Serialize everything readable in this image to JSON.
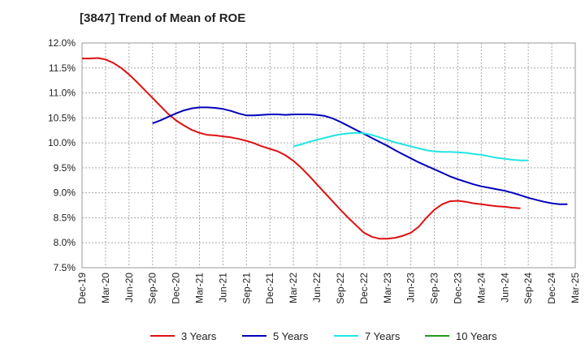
{
  "chart_data": {
    "type": "line",
    "title": "[3847]  Trend of Mean of ROE",
    "xlabel": "",
    "ylabel": "",
    "ylim": [
      7.5,
      12.0
    ],
    "y_ticks": [
      "7.5%",
      "8.0%",
      "8.5%",
      "9.0%",
      "9.5%",
      "10.0%",
      "10.5%",
      "11.0%",
      "11.5%",
      "12.0%"
    ],
    "x_ticks": [
      "Dec-19",
      "Mar-20",
      "Jun-20",
      "Sep-20",
      "Dec-20",
      "Mar-21",
      "Jun-21",
      "Sep-21",
      "Dec-21",
      "Mar-22",
      "Jun-22",
      "Sep-22",
      "Dec-22",
      "Mar-23",
      "Jun-23",
      "Sep-23",
      "Dec-23",
      "Mar-24",
      "Jun-24",
      "Sep-24",
      "Dec-24",
      "Mar-25"
    ],
    "grid": true,
    "legend_position": "bottom",
    "series": [
      {
        "name": "3 Years",
        "color": "#dd1111",
        "start_index": 0,
        "values": [
          11.69,
          11.69,
          11.7,
          11.67,
          11.6,
          11.5,
          11.37,
          11.22,
          11.06,
          10.9,
          10.74,
          10.58,
          10.45,
          10.35,
          10.26,
          10.2,
          10.16,
          10.15,
          10.13,
          10.11,
          10.08,
          10.04,
          9.99,
          9.93,
          9.88,
          9.83,
          9.75,
          9.64,
          9.5,
          9.34,
          9.17,
          9.0,
          8.83,
          8.66,
          8.5,
          8.35,
          8.2,
          8.12,
          8.08,
          8.08,
          8.1,
          8.14,
          8.2,
          8.32,
          8.5,
          8.66,
          8.77,
          8.83,
          8.84,
          8.82,
          8.79,
          8.77,
          8.75,
          8.73,
          8.72,
          8.7,
          8.69
        ]
      },
      {
        "name": "5 Years",
        "color": "#0000bb",
        "start_index": 9,
        "values": [
          10.39,
          10.45,
          10.52,
          10.59,
          10.65,
          10.69,
          10.71,
          10.71,
          10.7,
          10.68,
          10.64,
          10.59,
          10.55,
          10.55,
          10.56,
          10.57,
          10.57,
          10.56,
          10.57,
          10.57,
          10.57,
          10.56,
          10.54,
          10.49,
          10.42,
          10.34,
          10.26,
          10.18,
          10.1,
          10.02,
          9.94,
          9.85,
          9.77,
          9.69,
          9.61,
          9.54,
          9.47,
          9.4,
          9.33,
          9.27,
          9.22,
          9.17,
          9.13,
          9.1,
          9.07,
          9.04,
          9.0,
          8.95,
          8.9,
          8.86,
          8.82,
          8.79,
          8.77,
          8.77
        ]
      },
      {
        "name": "7 Years",
        "color": "#22e5e5",
        "start_index": 27,
        "values": [
          9.93,
          9.97,
          10.02,
          10.06,
          10.1,
          10.14,
          10.17,
          10.19,
          10.2,
          10.19,
          10.16,
          10.11,
          10.06,
          10.01,
          9.97,
          9.93,
          9.89,
          9.85,
          9.83,
          9.82,
          9.82,
          9.81,
          9.8,
          9.78,
          9.76,
          9.73,
          9.7,
          9.68,
          9.66,
          9.65,
          9.65
        ]
      },
      {
        "name": "10 Years",
        "color": "#229922",
        "start_index": 0,
        "values": []
      }
    ]
  }
}
